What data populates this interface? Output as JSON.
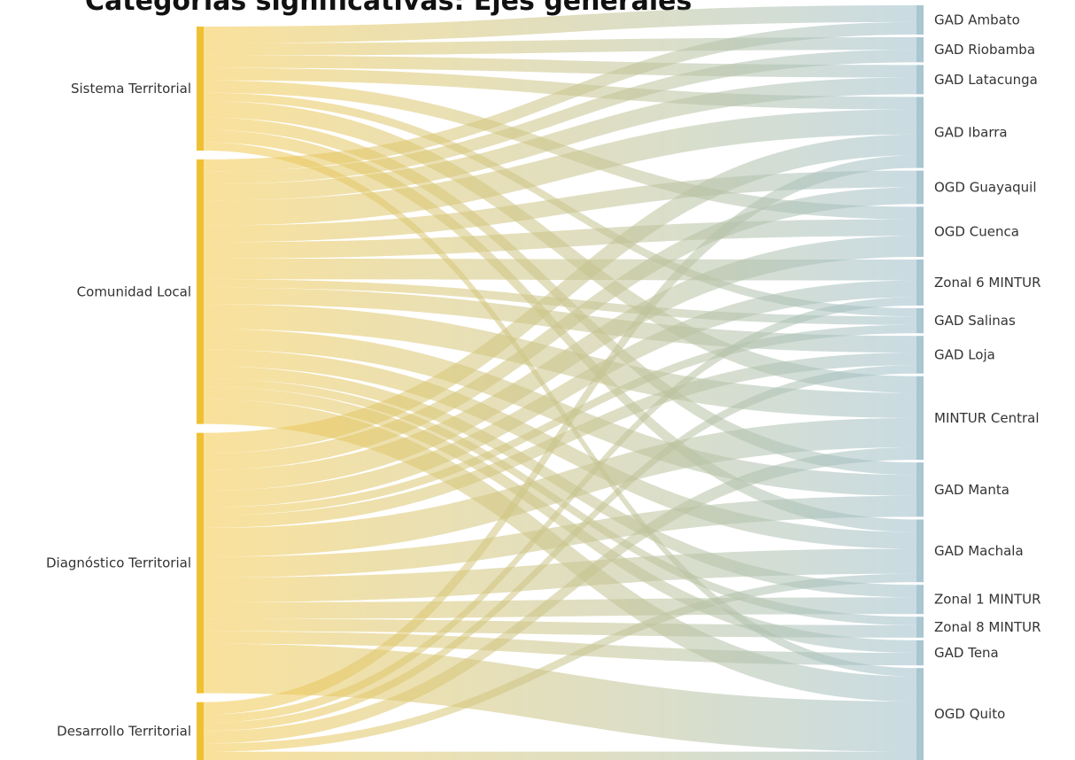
{
  "title": "Categorías significativas: Ejes generales",
  "colors": {
    "source": "#f5c94a",
    "target": "#9dbfcb",
    "sourceBar": "#f0c033",
    "targetBar": "#a9c6d1"
  },
  "chart_data": {
    "type": "sankey",
    "sources": [
      "Sistema Territorial",
      "Comunidad Local",
      "Diagnóstico Territorial",
      "Desarrollo Territorial"
    ],
    "targets": [
      "GAD Ambato",
      "GAD Riobamba",
      "GAD Latacunga",
      "GAD Ibarra",
      "OGD Guayaquil",
      "OGD Cuenca",
      "Zonal 6 MINTUR",
      "GAD Salinas",
      "GAD Loja",
      "MINTUR Central",
      "GAD Manta",
      "GAD Machala",
      "Zonal 1 MINTUR",
      "Zonal 8 MINTUR",
      "GAD Tena",
      "OGD Quito"
    ],
    "links": [
      [
        "Sistema Territorial",
        "GAD Ambato",
        4
      ],
      [
        "Sistema Territorial",
        "GAD Riobamba",
        3
      ],
      [
        "Sistema Territorial",
        "GAD Latacunga",
        3
      ],
      [
        "Sistema Territorial",
        "GAD Ibarra",
        3
      ],
      [
        "Sistema Territorial",
        "OGD Cuenca",
        3
      ],
      [
        "Sistema Territorial",
        "GAD Salinas",
        2
      ],
      [
        "Sistema Territorial",
        "MINTUR Central",
        4
      ],
      [
        "Sistema Territorial",
        "GAD Manta",
        3
      ],
      [
        "Sistema Territorial",
        "GAD Machala",
        3
      ],
      [
        "Sistema Territorial",
        "OGD Quito",
        2
      ],
      [
        "Comunidad Local",
        "GAD Ambato",
        3
      ],
      [
        "Comunidad Local",
        "GAD Riobamba",
        3
      ],
      [
        "Comunidad Local",
        "GAD Latacunga",
        4
      ],
      [
        "Comunidad Local",
        "GAD Ibarra",
        6
      ],
      [
        "Comunidad Local",
        "OGD Guayaquil",
        4
      ],
      [
        "Comunidad Local",
        "OGD Cuenca",
        4
      ],
      [
        "Comunidad Local",
        "Zonal 6 MINTUR",
        5
      ],
      [
        "Comunidad Local",
        "GAD Salinas",
        2
      ],
      [
        "Comunidad Local",
        "GAD Loja",
        4
      ],
      [
        "Comunidad Local",
        "MINTUR Central",
        6
      ],
      [
        "Comunidad Local",
        "GAD Manta",
        5
      ],
      [
        "Comunidad Local",
        "GAD Machala",
        4
      ],
      [
        "Comunidad Local",
        "Zonal 1 MINTUR",
        3
      ],
      [
        "Comunidad Local",
        "Zonal 8 MINTUR",
        2
      ],
      [
        "Comunidad Local",
        "GAD Tena",
        3
      ],
      [
        "Comunidad Local",
        "OGD Quito",
        6
      ],
      [
        "Diagnóstico Territorial",
        "GAD Ibarra",
        5
      ],
      [
        "Diagnóstico Territorial",
        "OGD Guayaquil",
        4
      ],
      [
        "Diagnóstico Territorial",
        "OGD Cuenca",
        5
      ],
      [
        "Diagnóstico Territorial",
        "Zonal 6 MINTUR",
        4
      ],
      [
        "Diagnóstico Territorial",
        "GAD Salinas",
        2
      ],
      [
        "Diagnóstico Territorial",
        "GAD Loja",
        3
      ],
      [
        "Diagnóstico Territorial",
        "MINTUR Central",
        7
      ],
      [
        "Diagnóstico Territorial",
        "GAD Manta",
        5
      ],
      [
        "Diagnóstico Territorial",
        "GAD Machala",
        6
      ],
      [
        "Diagnóstico Territorial",
        "Zonal 1 MINTUR",
        4
      ],
      [
        "Diagnóstico Territorial",
        "Zonal 8 MINTUR",
        3
      ],
      [
        "Diagnóstico Territorial",
        "GAD Tena",
        3
      ],
      [
        "Diagnóstico Territorial",
        "OGD Quito",
        12
      ],
      [
        "Desarrollo Territorial",
        "GAD Ibarra",
        3
      ],
      [
        "Desarrollo Territorial",
        "Zonal 6 MINTUR",
        2
      ],
      [
        "Desarrollo Territorial",
        "GAD Loja",
        2
      ],
      [
        "Desarrollo Territorial",
        "MINTUR Central",
        3
      ],
      [
        "Desarrollo Territorial",
        "GAD Machala",
        2
      ],
      [
        "Desarrollo Territorial",
        "OGD Quito",
        2
      ]
    ]
  }
}
